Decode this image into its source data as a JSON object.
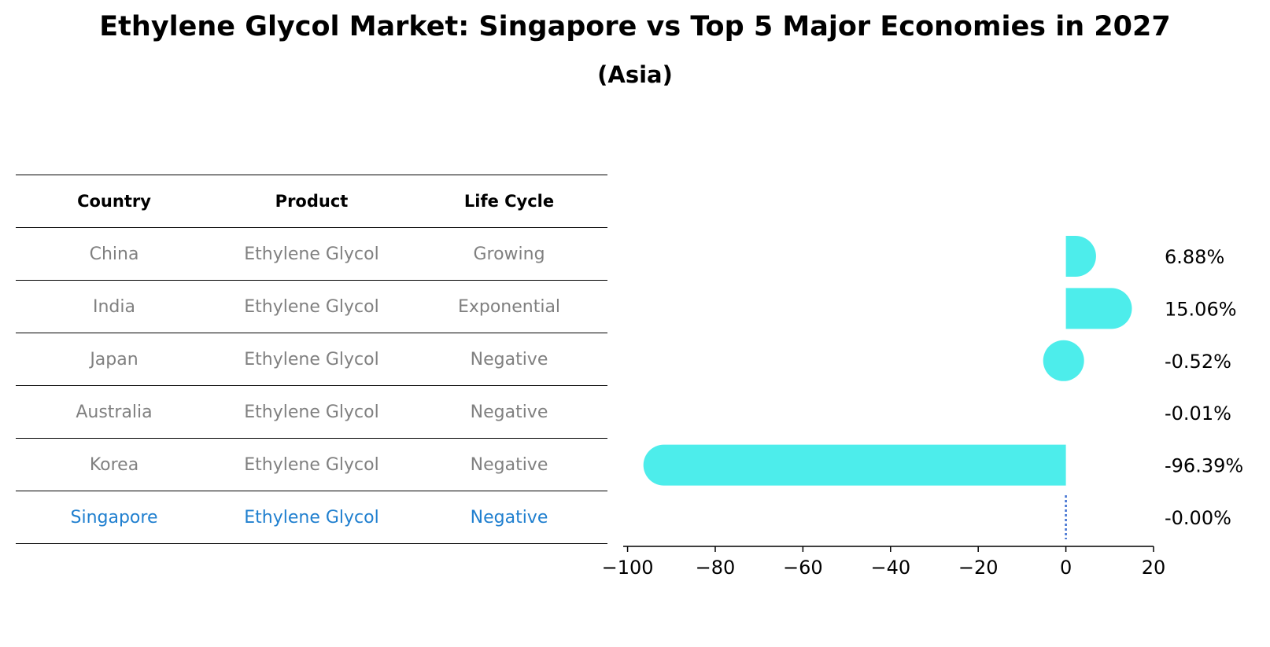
{
  "title": "Ethylene Glycol Market: Singapore vs Top 5 Major Economies in 2027",
  "subtitle": "(Asia)",
  "table": {
    "headers": [
      "Country",
      "Product",
      "Life Cycle"
    ],
    "rows": [
      {
        "country": "China",
        "product": "Ethylene Glycol",
        "life_cycle": "Growing"
      },
      {
        "country": "India",
        "product": "Ethylene Glycol",
        "life_cycle": "Exponential"
      },
      {
        "country": "Japan",
        "product": "Ethylene Glycol",
        "life_cycle": "Negative"
      },
      {
        "country": "Australia",
        "product": "Ethylene Glycol",
        "life_cycle": "Negative"
      },
      {
        "country": "Korea",
        "product": "Ethylene Glycol",
        "life_cycle": "Negative"
      },
      {
        "country": "Singapore",
        "product": "Ethylene Glycol",
        "life_cycle": "Negative"
      }
    ]
  },
  "colors": {
    "bar": "#4dedeb",
    "highlight_text": "#1f7fcf",
    "muted_text": "#808080",
    "reference_line": "#3d6fd1"
  },
  "chart_data": {
    "type": "bar",
    "orientation": "horizontal",
    "categories": [
      "China",
      "India",
      "Japan",
      "Australia",
      "Korea",
      "Singapore"
    ],
    "values": [
      6.88,
      15.06,
      -0.52,
      -0.01,
      -96.39,
      -0.0
    ],
    "value_labels": [
      "6.88%",
      "15.06%",
      "-0.52%",
      "-0.01%",
      "-96.39%",
      "-0.00%"
    ],
    "xlim": [
      -101,
      20
    ],
    "xticks": [
      -100,
      -80,
      -60,
      -40,
      -20,
      0,
      20
    ],
    "xtick_labels": [
      "−100",
      "−80",
      "−60",
      "−40",
      "−20",
      "0",
      "20"
    ],
    "bar_style": "rounded",
    "highlight": "Singapore",
    "highlight_marker": "dotted-line",
    "grid": false
  }
}
